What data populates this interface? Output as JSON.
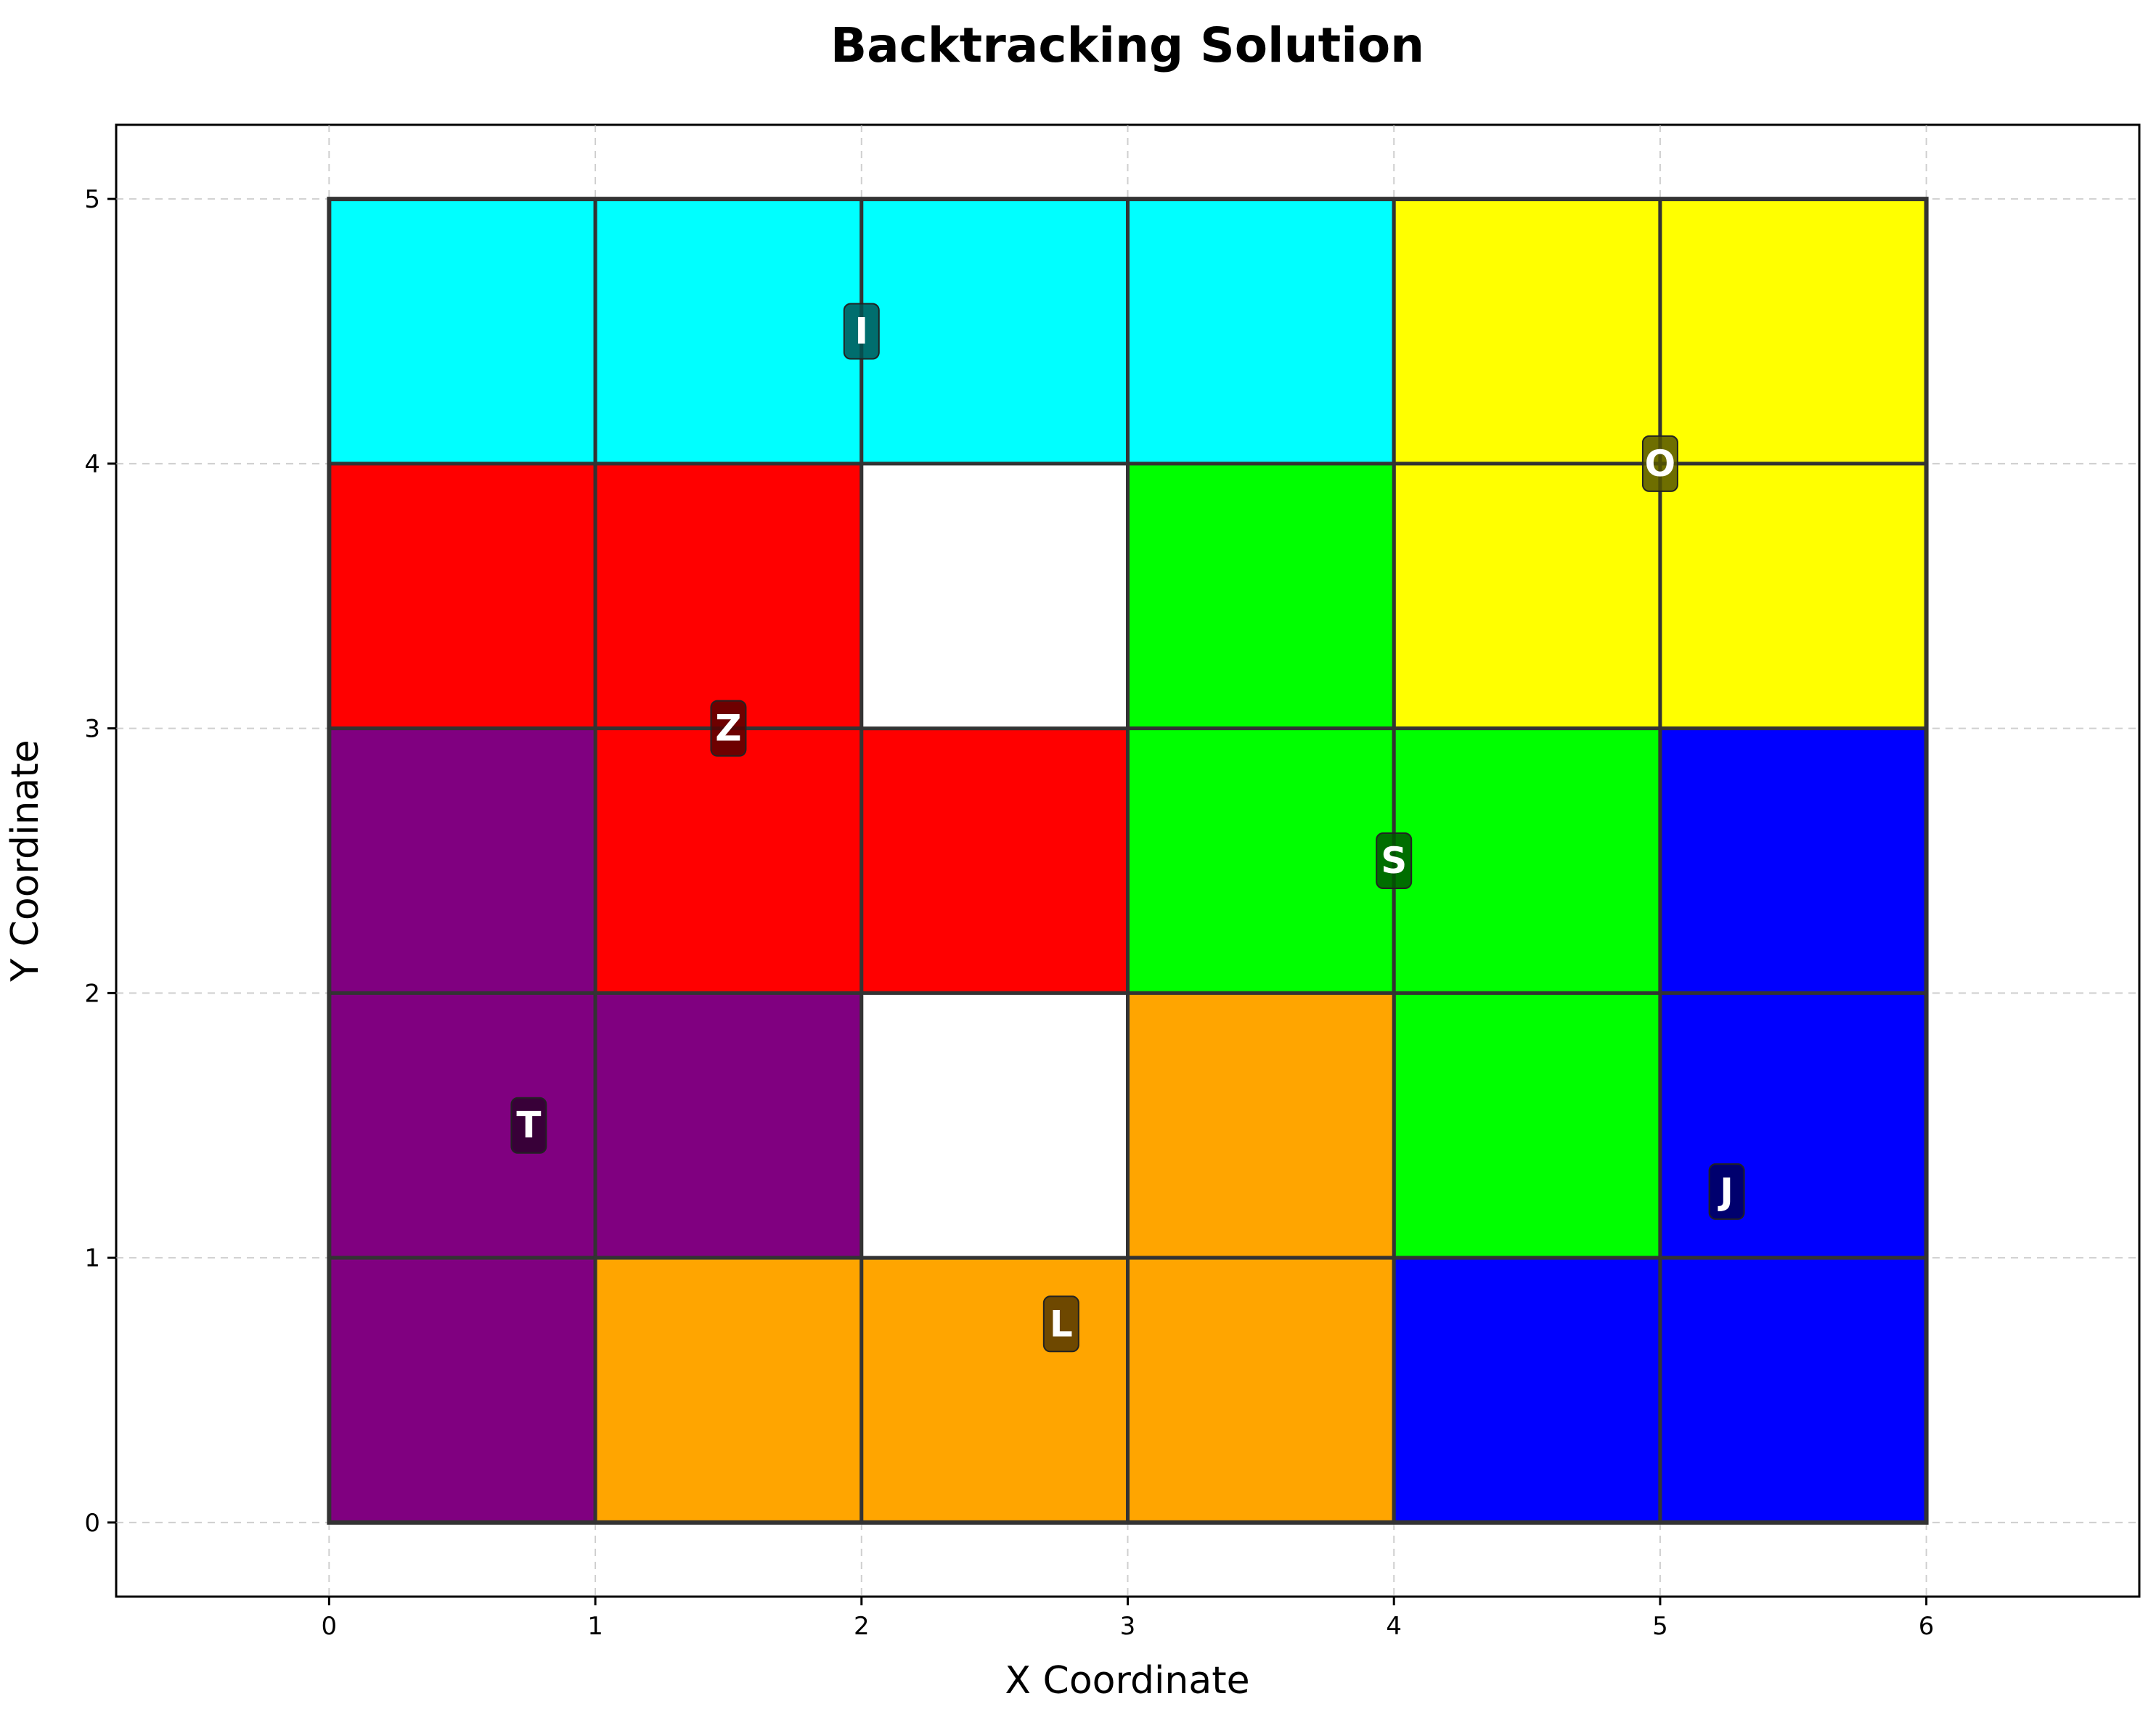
{
  "chart_data": {
    "type": "tiling",
    "title": "Backtracking Solution",
    "xlabel": "X Coordinate",
    "ylabel": "Y Coordinate",
    "xlim": [
      -0.8,
      6.8
    ],
    "ylim": [
      -0.28,
      5.28
    ],
    "x_ticks": [
      "0",
      "1",
      "2",
      "3",
      "4",
      "5",
      "6"
    ],
    "y_ticks": [
      "0",
      "1",
      "2",
      "3",
      "4",
      "5"
    ],
    "grid": true,
    "board": {
      "width": 6,
      "height": 5
    },
    "pieces": [
      {
        "name": "I",
        "color": "#00ffff",
        "label_color": "#005555",
        "cells": [
          [
            0,
            4
          ],
          [
            1,
            4
          ],
          [
            2,
            4
          ],
          [
            3,
            4
          ]
        ],
        "label_pos": [
          2.0,
          4.5
        ]
      },
      {
        "name": "O",
        "color": "#ffff00",
        "label_color": "#555500",
        "cells": [
          [
            4,
            4
          ],
          [
            5,
            4
          ],
          [
            4,
            3
          ],
          [
            5,
            3
          ]
        ],
        "label_pos": [
          5.0,
          4.0
        ]
      },
      {
        "name": "Z",
        "color": "#ff0000",
        "label_color": "#550000",
        "cells": [
          [
            0,
            3
          ],
          [
            1,
            3
          ],
          [
            1,
            2
          ],
          [
            2,
            2
          ]
        ],
        "label_pos": [
          1.5,
          3.0
        ]
      },
      {
        "name": "S",
        "color": "#00ff00",
        "label_color": "#005500",
        "cells": [
          [
            3,
            3
          ],
          [
            3,
            2
          ],
          [
            4,
            2
          ],
          [
            4,
            1
          ]
        ],
        "label_pos": [
          4.0,
          2.5
        ]
      },
      {
        "name": "T",
        "color": "#800080",
        "label_color": "#2b002b",
        "cells": [
          [
            0,
            2
          ],
          [
            0,
            1
          ],
          [
            1,
            1
          ],
          [
            0,
            0
          ]
        ],
        "label_pos": [
          0.75,
          1.5
        ]
      },
      {
        "name": "L",
        "color": "#ffa500",
        "label_color": "#553700",
        "cells": [
          [
            3,
            1
          ],
          [
            1,
            0
          ],
          [
            2,
            0
          ],
          [
            3,
            0
          ]
        ],
        "label_pos": [
          2.75,
          0.75
        ]
      },
      {
        "name": "J",
        "color": "#0000ff",
        "label_color": "#000055",
        "cells": [
          [
            5,
            2
          ],
          [
            5,
            1
          ],
          [
            4,
            0
          ],
          [
            5,
            0
          ]
        ],
        "label_pos": [
          5.25,
          1.25
        ]
      }
    ],
    "empty_cells": [
      [
        2,
        3
      ],
      [
        2,
        1
      ]
    ],
    "empty_color": "#ffffff"
  }
}
